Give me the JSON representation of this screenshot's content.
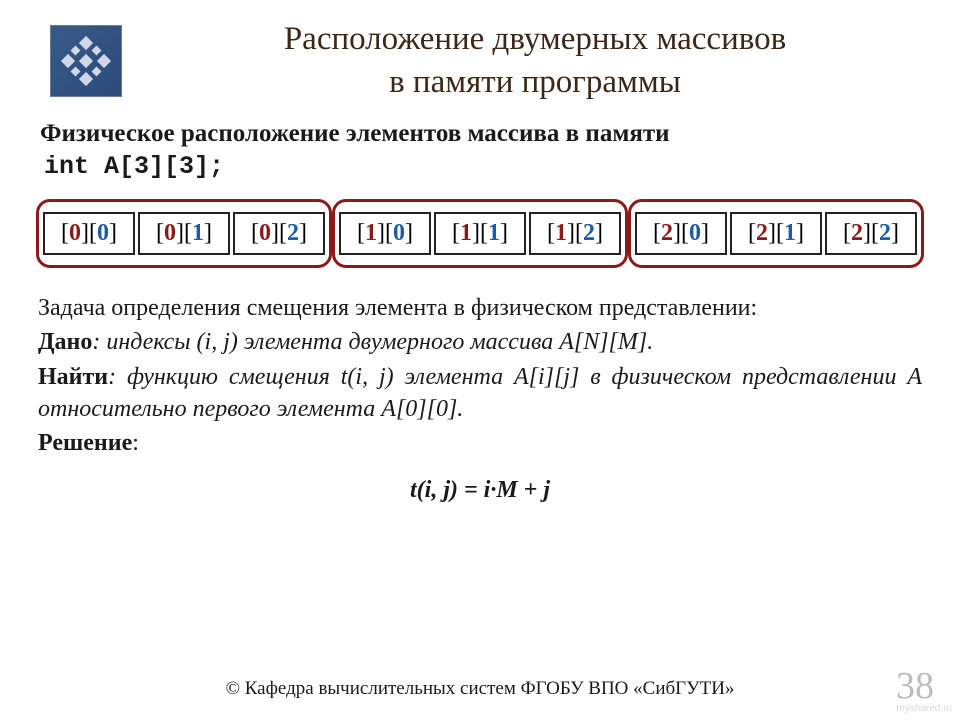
{
  "title_line1": "Расположение двумерных массивов",
  "title_line2": "в памяти программы",
  "subtitle": "Физическое расположение элементов массива в памяти",
  "declaration": "int A[3][3];",
  "memory": {
    "groups": [
      [
        {
          "i": "0",
          "j": "0"
        },
        {
          "i": "0",
          "j": "1"
        },
        {
          "i": "0",
          "j": "2"
        }
      ],
      [
        {
          "i": "1",
          "j": "0"
        },
        {
          "i": "1",
          "j": "1"
        },
        {
          "i": "1",
          "j": "2"
        }
      ],
      [
        {
          "i": "2",
          "j": "0"
        },
        {
          "i": "2",
          "j": "1"
        },
        {
          "i": "2",
          "j": "2"
        }
      ]
    ],
    "cell_border_color": "#222222",
    "group_border_color": "#8b1a1a",
    "first_index_color": "#8b1a1a",
    "second_index_color": "#1e5aa8"
  },
  "task": {
    "intro": "Задача определения смещения элемента в физическом представлении:",
    "given_label": "Дано",
    "given_text": ": индексы (i, j) элемента двумерного массива A[N][M].",
    "find_label": "Найти",
    "find_text": ": функцию смещения t(i, j) элемента A[i][j] в физическом представлении A относительно первого элемента A[0][0].",
    "solution_label": "Решение",
    "solution_suffix": ":",
    "formula": "t(i, j) = i·M + j"
  },
  "footer": "© Кафедра вычислительных систем ФГОБУ ВПО «СибГУТИ»",
  "page_number": "38",
  "watermark": "myshared.ru",
  "colors": {
    "title": "#3d2817",
    "text": "#1a1a1a",
    "background": "#ffffff",
    "page_num": "#bcbcbc"
  },
  "fontsize": {
    "title": 33,
    "subtitle": 25,
    "body": 24,
    "cell": 24,
    "footer": 19,
    "page_num": 38
  }
}
